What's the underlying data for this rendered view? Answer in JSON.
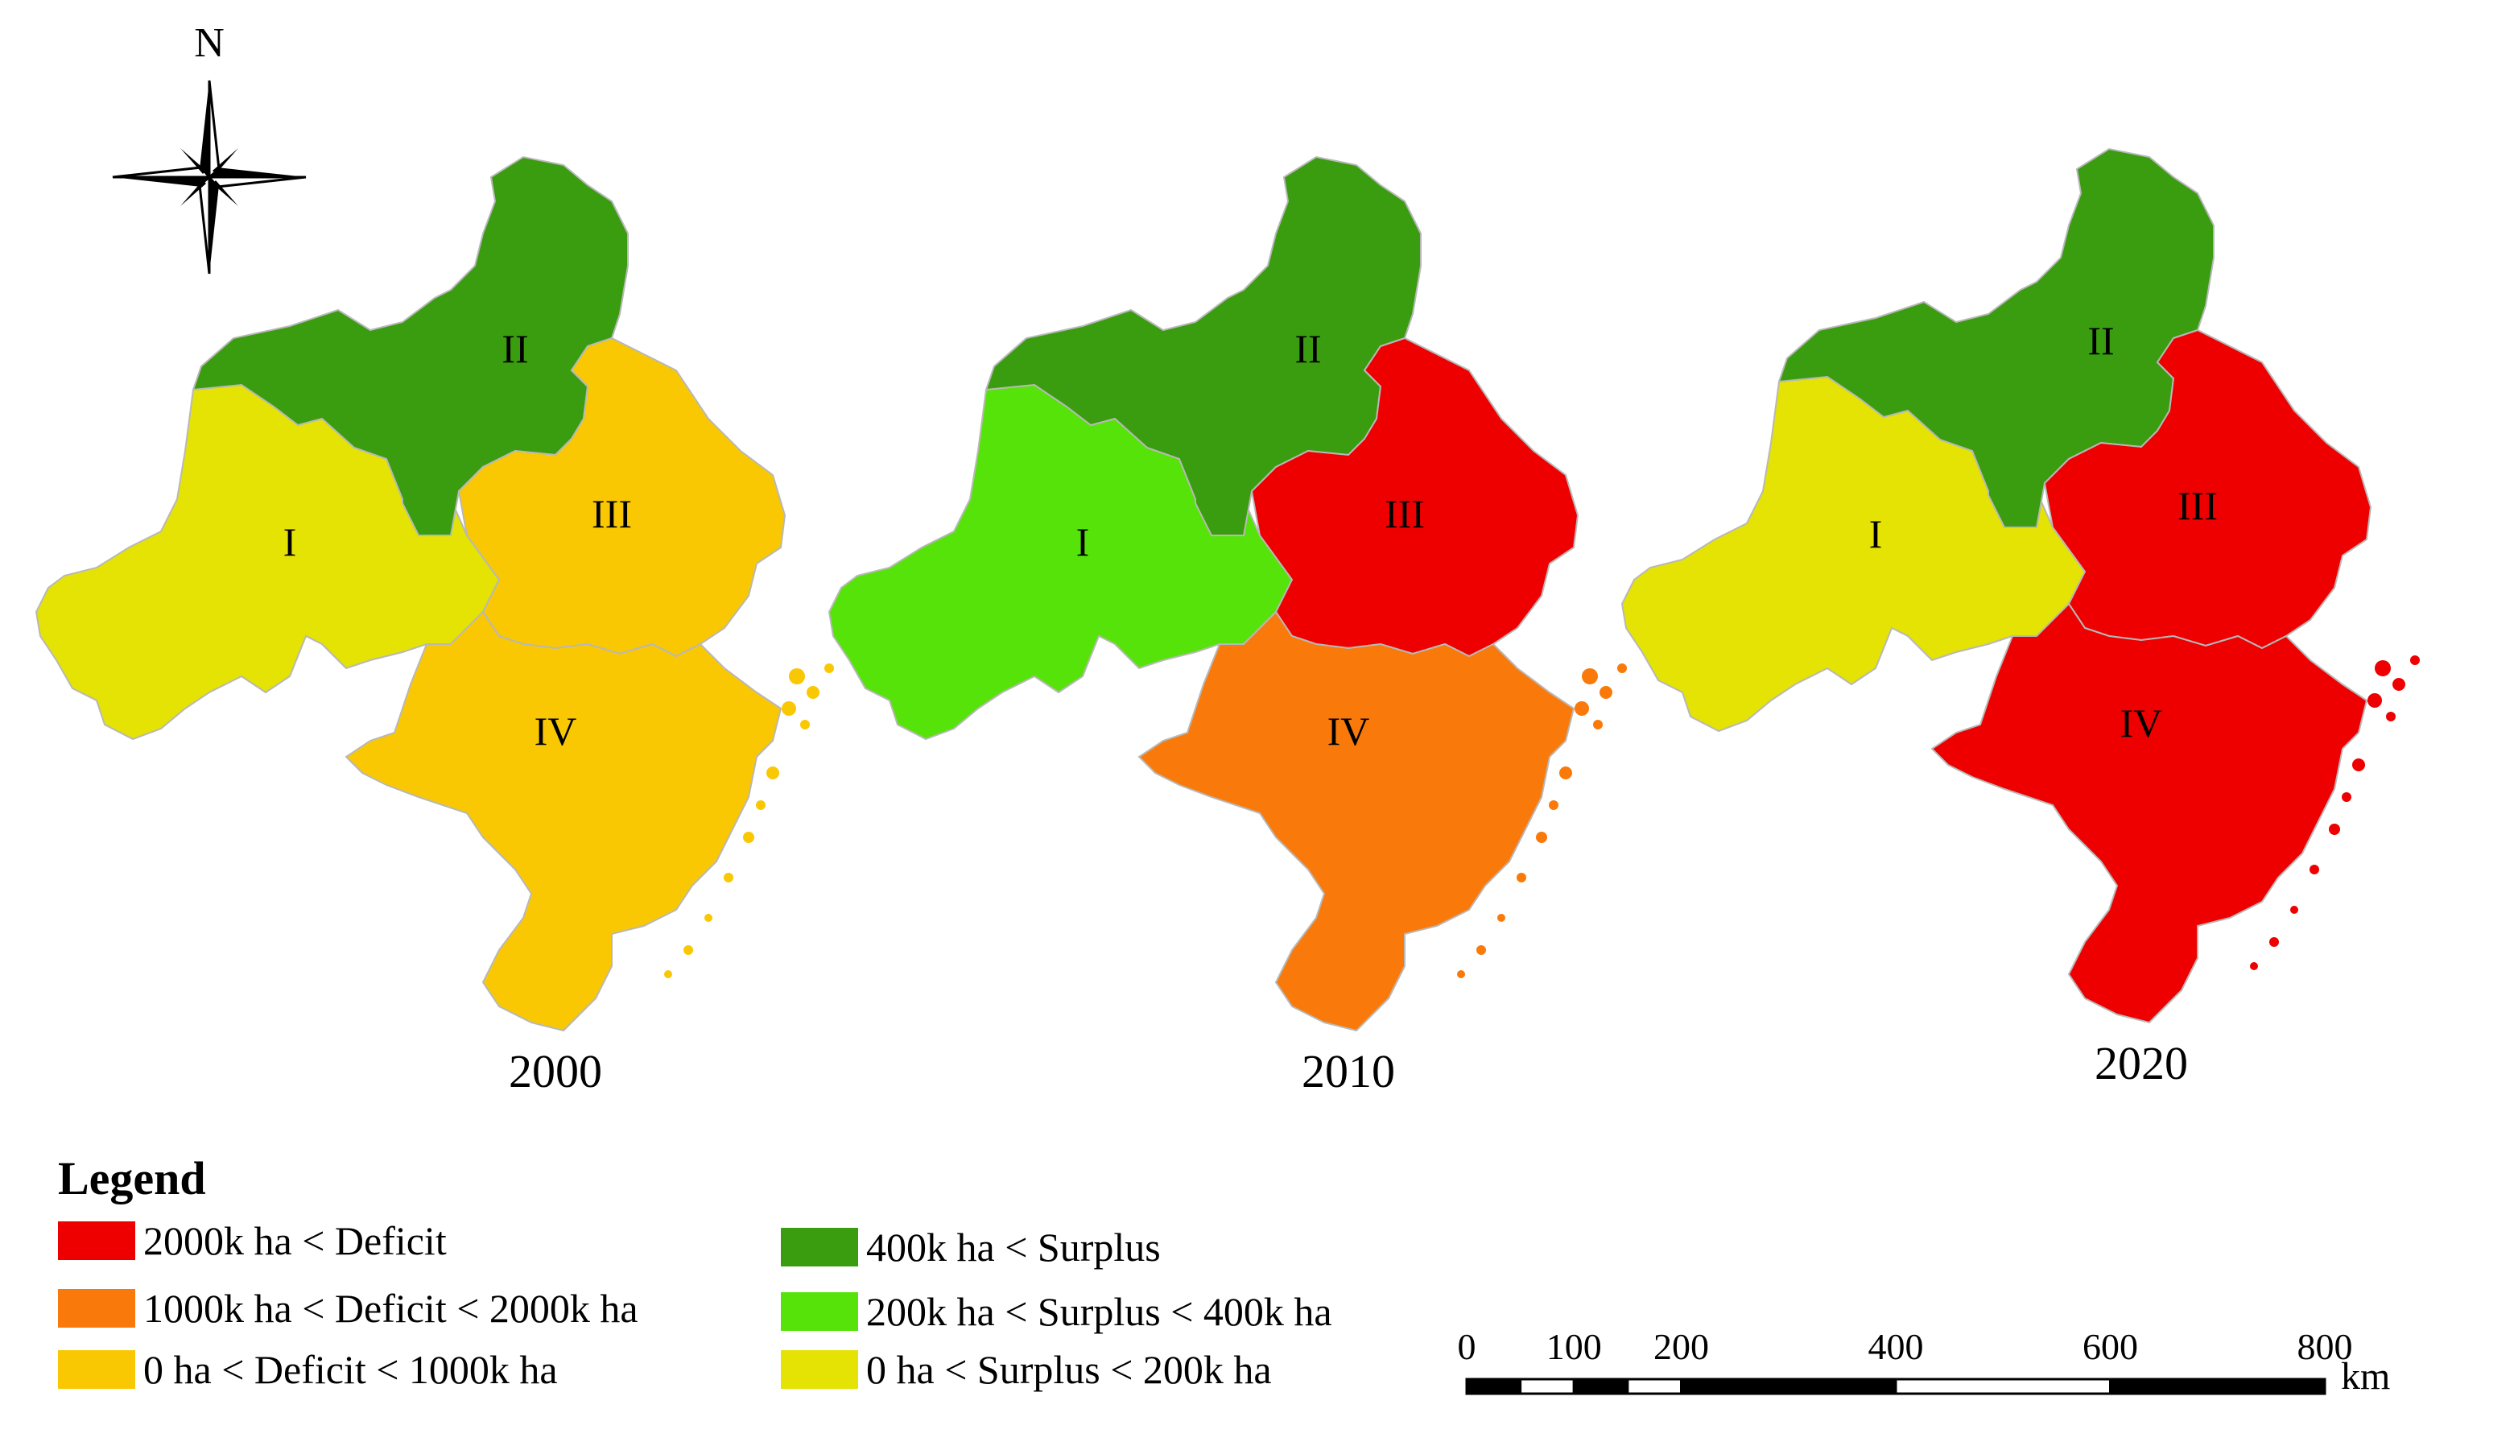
{
  "north_label": "N",
  "maps": [
    {
      "year": "2000",
      "regions": [
        {
          "label": "I",
          "class": "surplus_0_200"
        },
        {
          "label": "II",
          "class": "surplus_400"
        },
        {
          "label": "III",
          "class": "deficit_0_1000"
        },
        {
          "label": "IV",
          "class": "deficit_0_1000"
        }
      ]
    },
    {
      "year": "2010",
      "regions": [
        {
          "label": "I",
          "class": "surplus_200_400"
        },
        {
          "label": "II",
          "class": "surplus_400"
        },
        {
          "label": "III",
          "class": "deficit_2000"
        },
        {
          "label": "IV",
          "class": "deficit_1000_2000"
        }
      ]
    },
    {
      "year": "2020",
      "regions": [
        {
          "label": "I",
          "class": "surplus_0_200"
        },
        {
          "label": "II",
          "class": "surplus_400"
        },
        {
          "label": "III",
          "class": "deficit_2000"
        },
        {
          "label": "IV",
          "class": "deficit_2000"
        }
      ]
    }
  ],
  "legend": {
    "title": "Legend",
    "items": [
      {
        "key": "deficit_2000",
        "label": "2000k ha < Deficit",
        "color": "#ee0000"
      },
      {
        "key": "deficit_1000_2000",
        "label": "1000k ha < Deficit < 2000k ha",
        "color": "#f97a0a"
      },
      {
        "key": "deficit_0_1000",
        "label": "0 ha < Deficit < 1000k ha",
        "color": "#f9c802"
      },
      {
        "key": "surplus_400",
        "label": "400k ha < Surplus",
        "color": "#3a9c0f"
      },
      {
        "key": "surplus_200_400",
        "label": "200k ha < Surplus < 400k ha",
        "color": "#56e30a"
      },
      {
        "key": "surplus_0_200",
        "label": "0 ha < Surplus < 200k ha",
        "color": "#e4e303"
      }
    ]
  },
  "scale_bar": {
    "ticks": [
      0,
      100,
      200,
      400,
      600,
      800
    ],
    "unit": "km"
  }
}
